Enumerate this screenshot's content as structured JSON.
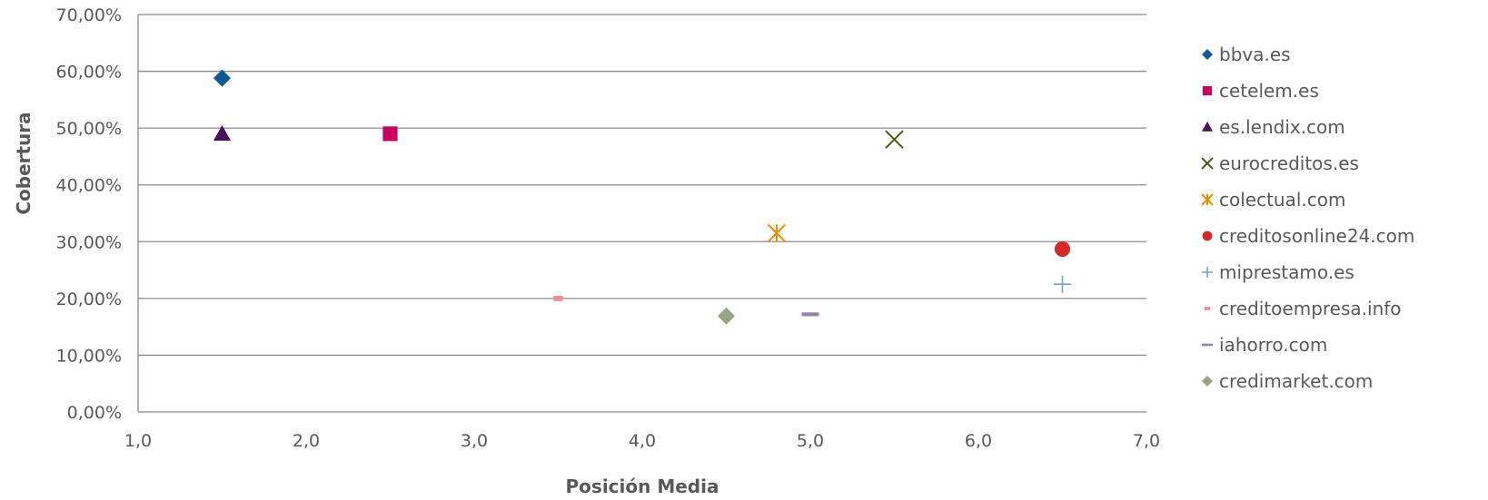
{
  "chart_data": {
    "type": "scatter",
    "title": "",
    "xlabel": "Posición Media",
    "ylabel": "Cobertura",
    "xlim": [
      1.0,
      7.0
    ],
    "ylim": [
      0,
      70
    ],
    "x_ticks": [
      1,
      2,
      3,
      4,
      5,
      6,
      7
    ],
    "y_ticks": [
      0,
      10,
      20,
      30,
      40,
      50,
      60,
      70
    ],
    "x_tick_labels": [
      "1,0",
      "2,0",
      "3,0",
      "4,0",
      "5,0",
      "6,0",
      "7,0"
    ],
    "y_tick_labels": [
      "0,00%",
      "10,00%",
      "20,00%",
      "30,00%",
      "40,00%",
      "50,00%",
      "60,00%",
      "70,00%"
    ],
    "grid": "horizontal",
    "legend_position": "right",
    "series": [
      {
        "name": "bbva.es",
        "marker": "diamond",
        "color": "#0c5a93",
        "x": 1.5,
        "y": 58.8
      },
      {
        "name": "cetelem.es",
        "marker": "square",
        "color": "#c8005f",
        "x": 2.5,
        "y": 49.0
      },
      {
        "name": "es.lendix.com",
        "marker": "triangle",
        "color": "#4b0f5c",
        "x": 1.5,
        "y": 49.0
      },
      {
        "name": "eurocreditos.es",
        "marker": "x",
        "color": "#4a5a18",
        "x": 5.5,
        "y": 48.0
      },
      {
        "name": "colectual.com",
        "marker": "star",
        "color": "#f08c00",
        "x": 4.8,
        "y": 31.5
      },
      {
        "name": "creditosonline24.com",
        "marker": "circle",
        "color": "#d22b2b",
        "x": 6.5,
        "y": 28.7
      },
      {
        "name": "miprestamo.es",
        "marker": "plus",
        "color": "#7b9dd0",
        "x": 6.5,
        "y": 22.5
      },
      {
        "name": "creditoempresa.info",
        "marker": "dash-small",
        "color": "#ef8aa2",
        "x": 3.5,
        "y": 20.0
      },
      {
        "name": "iahorro.com",
        "marker": "dash",
        "color": "#9b83a8",
        "x": 5.0,
        "y": 17.2
      },
      {
        "name": "credimarket.com",
        "marker": "diamond",
        "color": "#95a585",
        "x": 4.5,
        "y": 16.9
      }
    ]
  }
}
